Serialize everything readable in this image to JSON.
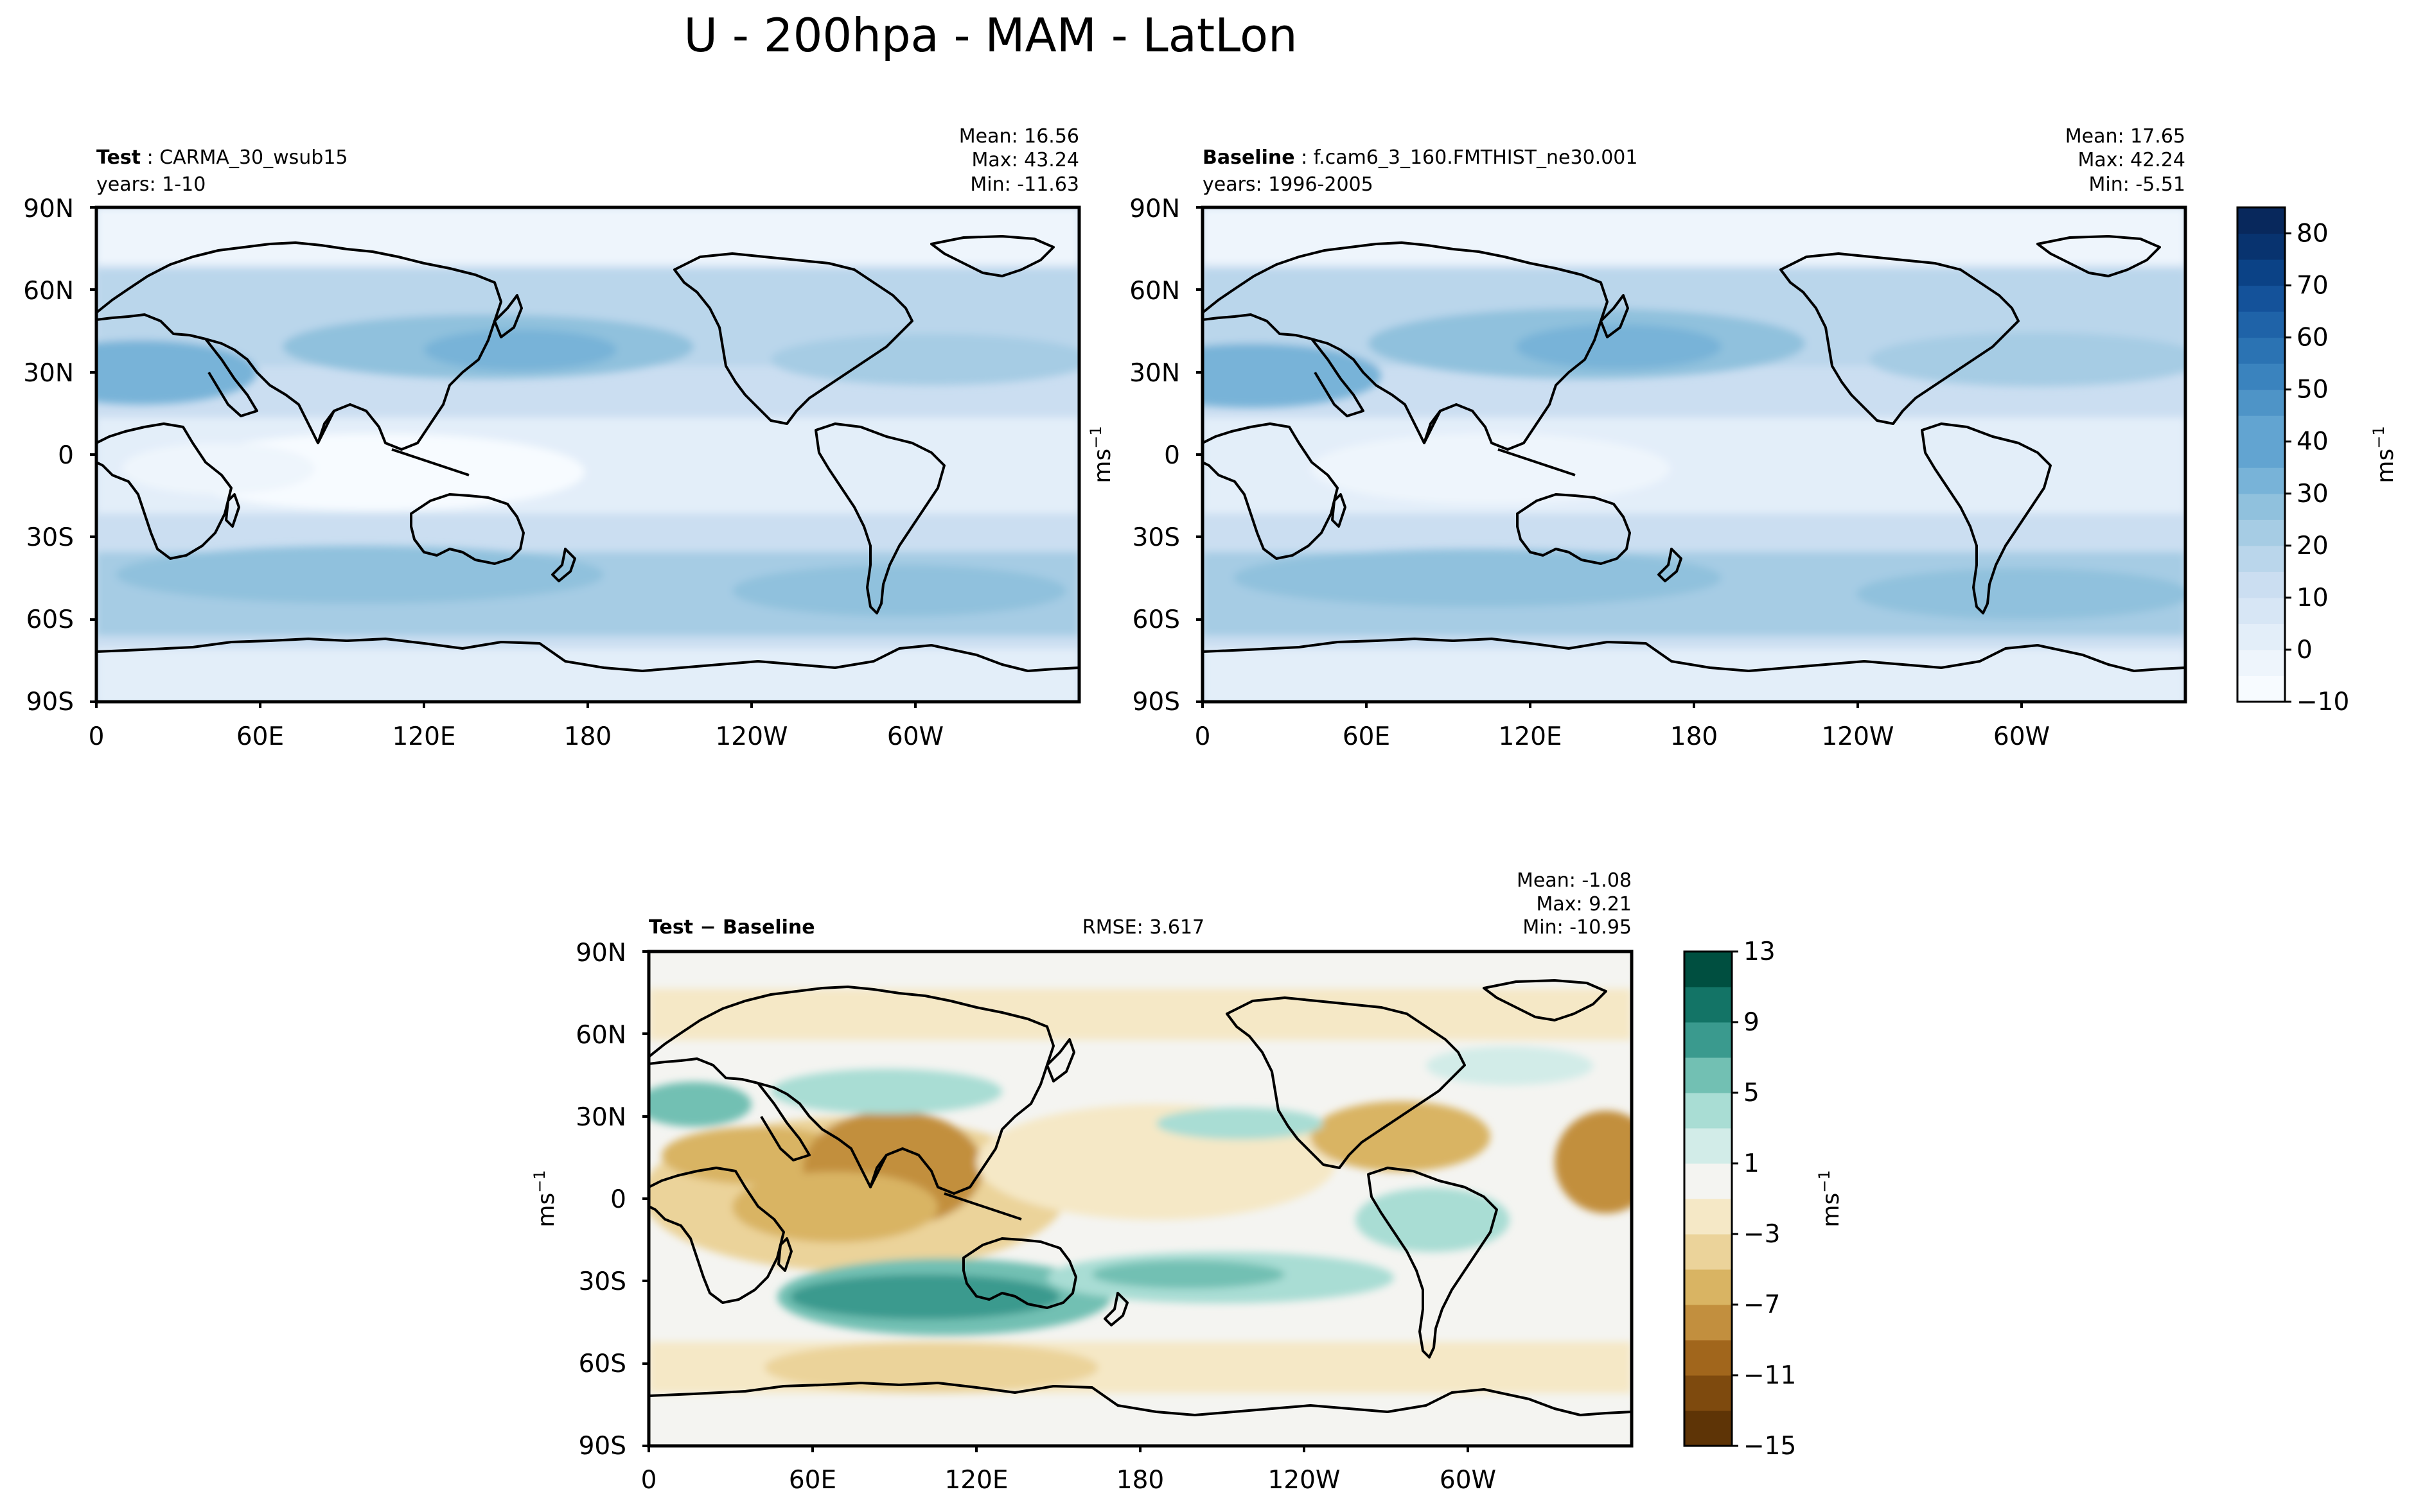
{
  "title": "U - 200hpa - MAM - LatLon",
  "panels": [
    {
      "id": "test",
      "label_bold": "Test",
      "label_rest": "CARMA_30_wsub15",
      "label_line2": "years: 1-10",
      "stats": [
        "Mean: 16.56",
        "Max: 43.24",
        "Min: -11.63"
      ]
    },
    {
      "id": "baseline",
      "label_bold": "Baseline",
      "label_rest": "f.cam6_3_160.FMTHIST_ne30.001",
      "label_line2": "years: 1996-2005",
      "stats": [
        "Mean: 17.65",
        "Max: 42.24",
        "Min: -5.51"
      ]
    },
    {
      "id": "diff",
      "label_bold": "Test − Baseline",
      "rmse": "RMSE: 3.617",
      "stats": [
        "Mean: -1.08",
        "Max:  9.21",
        "Min: -10.95"
      ]
    }
  ],
  "axes": {
    "lat_ticks": [
      "90N",
      "60N",
      "30N",
      "0",
      "30S",
      "60S",
      "90S"
    ],
    "lon_ticks": [
      "0",
      "60E",
      "120E",
      "180",
      "120W",
      "60W"
    ]
  },
  "colorbars": [
    {
      "label": "ms",
      "label_sup": "−1",
      "ticks": [
        "80",
        "70",
        "60",
        "50",
        "40",
        "30",
        "20",
        "10",
        "0",
        "−10"
      ]
    },
    {
      "label": "ms",
      "label_sup": "−1",
      "ticks": [
        "13",
        "9",
        "5",
        "1",
        "−3",
        "−7",
        "−11",
        "−15"
      ]
    }
  ],
  "side_units": [
    {
      "label": "ms",
      "label_sup": "−1"
    },
    {
      "label": "ms",
      "label_sup": "−1"
    }
  ],
  "chart_data": [
    {
      "type": "heatmap",
      "panel": "test",
      "projection": "PlateCarree",
      "xlim": [
        0,
        360
      ],
      "ylim": [
        -90,
        90
      ],
      "colormap": "Blues",
      "levels": [
        -10,
        -5,
        0,
        5,
        10,
        15,
        20,
        25,
        30,
        35,
        40,
        45,
        50,
        55,
        60,
        65,
        70,
        75,
        80,
        85
      ],
      "stats": {
        "mean": 16.56,
        "max": 43.24,
        "min": -11.63
      }
    },
    {
      "type": "heatmap",
      "panel": "baseline",
      "projection": "PlateCarree",
      "xlim": [
        0,
        360
      ],
      "ylim": [
        -90,
        90
      ],
      "colormap": "Blues",
      "levels": [
        -10,
        -5,
        0,
        5,
        10,
        15,
        20,
        25,
        30,
        35,
        40,
        45,
        50,
        55,
        60,
        65,
        70,
        75,
        80,
        85
      ],
      "stats": {
        "mean": 17.65,
        "max": 42.24,
        "min": -5.51
      }
    },
    {
      "type": "heatmap",
      "panel": "diff",
      "projection": "PlateCarree",
      "xlim": [
        0,
        360
      ],
      "ylim": [
        -90,
        90
      ],
      "colormap": "BrBG",
      "levels": [
        -15,
        -13,
        -11,
        -9,
        -7,
        -5,
        -3,
        -1,
        1,
        3,
        5,
        7,
        9,
        11,
        13
      ],
      "stats": {
        "mean": -1.08,
        "max": 9.21,
        "min": -10.95,
        "rmse": 3.617
      }
    }
  ],
  "colors": {
    "blues_palette": [
      "#f7fbff",
      "#eef5fc",
      "#e3eef9",
      "#d7e6f5",
      "#cbdef1",
      "#bad6eb",
      "#a6cce4",
      "#90c1dd",
      "#78b3d8",
      "#62a4d1",
      "#4e94c7",
      "#3a83be",
      "#2b73b3",
      "#1f63a8",
      "#14529a",
      "#0b4286",
      "#08336f",
      "#08285c"
    ],
    "brbg_palette": [
      "#5e3406",
      "#7e4a0e",
      "#a1661c",
      "#c28f3e",
      "#d9b463",
      "#ebd39a",
      "#f5e8c6",
      "#f4f4f1",
      "#d2ece8",
      "#a9ddd4",
      "#72c0b3",
      "#3a9a8e",
      "#137466",
      "#004f40"
    ]
  }
}
